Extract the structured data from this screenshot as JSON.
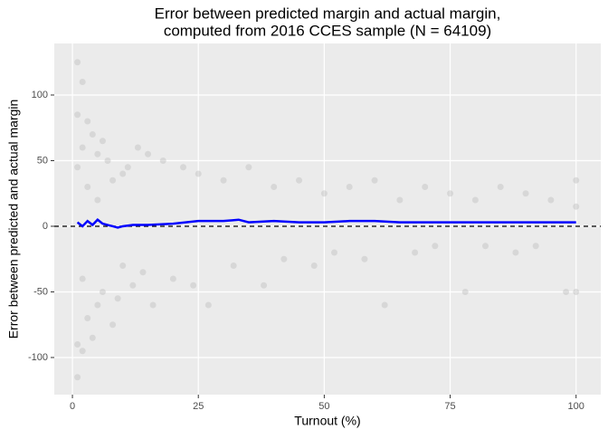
{
  "chart_data": {
    "type": "scatter",
    "title": [
      "Error between predicted margin and actual margin,",
      "computed from 2016 CCES sample (N = 64109)"
    ],
    "x_label": "Turnout (%)",
    "y_label": "Error between predicted and actual margin",
    "xlim": [
      -3.6,
      104.9
    ],
    "ylim": [
      -128.3,
      139.3
    ],
    "xticks": [
      0,
      25,
      50,
      75,
      100
    ],
    "yticks": [
      -100,
      -50,
      0,
      50,
      100
    ],
    "grid": true,
    "reference_line": 0,
    "series": [
      {
        "color": "#bebebe",
        "x": [
          1,
          1,
          1,
          1,
          1,
          2,
          2,
          2,
          2,
          3,
          3,
          3,
          4,
          4,
          5,
          5,
          5,
          6,
          6,
          7,
          8,
          8,
          9,
          10,
          10,
          11,
          12,
          13,
          14,
          15,
          16,
          18,
          20,
          22,
          24,
          25,
          27,
          30,
          32,
          35,
          38,
          40,
          42,
          45,
          48,
          50,
          52,
          55,
          58,
          60,
          62,
          65,
          68,
          70,
          72,
          75,
          78,
          80,
          82,
          85,
          88,
          90,
          92,
          95,
          98,
          100,
          100,
          100
        ],
        "values": [
          125,
          -115,
          85,
          -90,
          45,
          110,
          -95,
          60,
          -40,
          80,
          -70,
          30,
          70,
          -85,
          55,
          -60,
          20,
          65,
          -50,
          50,
          -75,
          35,
          -55,
          40,
          -30,
          45,
          -45,
          60,
          -35,
          55,
          -60,
          50,
          -40,
          45,
          -45,
          40,
          -60,
          35,
          -30,
          45,
          -45,
          30,
          -25,
          35,
          -30,
          25,
          -20,
          30,
          -25,
          35,
          -60,
          20,
          -20,
          30,
          -15,
          25,
          -50,
          20,
          -15,
          30,
          -20,
          25,
          -15,
          20,
          -50,
          35,
          -50,
          15
        ]
      },
      {
        "type": "line",
        "color": "#0000ff",
        "x": [
          1,
          2,
          3,
          4,
          5,
          6,
          7,
          8,
          9,
          10,
          12,
          15,
          20,
          25,
          30,
          33,
          35,
          40,
          45,
          50,
          55,
          60,
          65,
          70,
          75,
          80,
          85,
          90,
          95,
          100
        ],
        "values": [
          3,
          0,
          4,
          1,
          5,
          2,
          1,
          0,
          -1,
          0,
          1,
          1,
          2,
          4,
          4,
          5,
          3,
          4,
          3,
          3,
          4,
          4,
          3,
          3,
          3,
          3,
          3,
          3,
          3,
          3
        ]
      }
    ]
  }
}
